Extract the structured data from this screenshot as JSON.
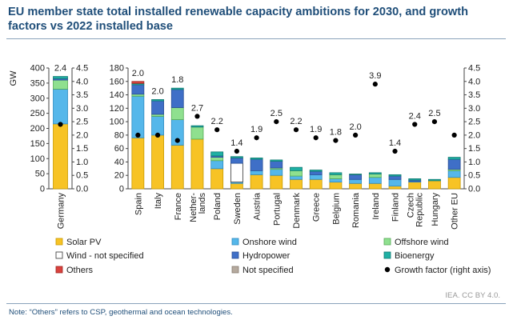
{
  "chart_data": {
    "type": "bar",
    "title": "EU member state total installed renewable capacity ambitions for 2030, and growth factors vs 2022 installed base",
    "left_panel": {
      "categories": [
        "Germany"
      ],
      "ylabel": "GW",
      "ylim": [
        0,
        400
      ],
      "y_ticks": [
        "0",
        "50",
        "100",
        "150",
        "200",
        "250",
        "300",
        "350",
        "400"
      ],
      "y2lim": [
        0,
        4.5
      ],
      "y2_ticks": [
        "0.0",
        "0.5",
        "1.0",
        "1.5",
        "2.0",
        "2.5",
        "3.0",
        "3.5",
        "4.0",
        "4.5"
      ],
      "series": [
        {
          "key": "solar",
          "values": [
            215
          ]
        },
        {
          "key": "onshore",
          "values": [
            115
          ]
        },
        {
          "key": "offshore",
          "values": [
            30
          ]
        },
        {
          "key": "wind_ns",
          "values": [
            0
          ]
        },
        {
          "key": "hydro",
          "values": [
            5
          ]
        },
        {
          "key": "bio",
          "values": [
            7
          ]
        },
        {
          "key": "others",
          "values": [
            0
          ]
        },
        {
          "key": "not_specified",
          "values": [
            0
          ]
        }
      ],
      "growth_factor": [
        2.4
      ],
      "growth_labels": [
        "2.4"
      ]
    },
    "right_panel": {
      "categories": [
        "Spain",
        "Italy",
        "France",
        "Nether-\nlands",
        "Poland",
        "Sweden",
        "Austria",
        "Portugal",
        "Denmark",
        "Greece",
        "Belgium",
        "Romania",
        "Ireland",
        "Finland",
        "Czech\nRepublic",
        "Hungary",
        "Other EU"
      ],
      "ylim": [
        0,
        180
      ],
      "y_ticks": [
        "0",
        "20",
        "40",
        "60",
        "80",
        "100",
        "120",
        "140",
        "160",
        "180"
      ],
      "y2lim": [
        0,
        4.5
      ],
      "y2_ticks": [
        "0.0",
        "0.5",
        "1.0",
        "1.5",
        "2.0",
        "2.5",
        "3.0",
        "3.5",
        "4.0",
        "4.5"
      ],
      "series": [
        {
          "key": "solar",
          "values": [
            76,
            80,
            65,
            74,
            30,
            8,
            21,
            20,
            14,
            14,
            10,
            8,
            8,
            4,
            10,
            12,
            17
          ]
        },
        {
          "key": "onshore",
          "values": [
            62,
            28,
            38,
            0,
            12,
            2,
            6,
            9,
            5,
            7,
            5,
            6,
            9,
            10,
            1,
            0,
            10
          ]
        },
        {
          "key": "offshore",
          "values": [
            3,
            3,
            18,
            18,
            5,
            0,
            0,
            2,
            8,
            0,
            6,
            0,
            5,
            0,
            0,
            0,
            2
          ]
        },
        {
          "key": "wind_ns",
          "values": [
            0,
            0,
            0,
            0,
            0,
            28,
            0,
            0,
            0,
            0,
            0,
            0,
            0,
            0,
            0,
            0,
            0
          ]
        },
        {
          "key": "hydro",
          "values": [
            14,
            20,
            27,
            0,
            2,
            8,
            17,
            10,
            0,
            5,
            0,
            7,
            0,
            5,
            2,
            0,
            15
          ]
        },
        {
          "key": "bio",
          "values": [
            2,
            2,
            2,
            2,
            6,
            2,
            2,
            2,
            5,
            2,
            3,
            1,
            2,
            2,
            2,
            2,
            3
          ]
        },
        {
          "key": "others",
          "values": [
            3,
            0,
            0,
            0,
            0,
            0,
            0,
            0,
            0,
            0,
            0,
            0,
            0,
            0,
            0,
            0,
            0
          ]
        },
        {
          "key": "not_specified",
          "values": [
            0,
            0,
            0,
            0,
            0,
            0,
            0,
            0,
            0,
            0,
            0,
            0,
            0,
            0,
            0,
            0,
            0
          ]
        }
      ],
      "growth_factor": [
        2.0,
        2.0,
        1.8,
        2.7,
        2.2,
        1.4,
        1.9,
        2.5,
        2.2,
        1.9,
        1.8,
        2.0,
        3.9,
        1.4,
        2.4,
        2.5,
        2.0
      ],
      "growth_labels": [
        "2.0",
        "2.0",
        "1.8",
        "2.7",
        "2.2",
        "1.4",
        "1.9",
        "2.5",
        "2.2",
        "1.9",
        "1.8",
        "2.0",
        "3.9",
        "1.4",
        "2.4",
        "2.5",
        ""
      ]
    },
    "legend": [
      {
        "key": "solar",
        "label": "Solar PV",
        "color": "#f7c325",
        "border": "#c99a00"
      },
      {
        "key": "onshore",
        "label": "Onshore wind",
        "color": "#55b7ea",
        "border": "#2f8bc0"
      },
      {
        "key": "offshore",
        "label": "Offshore wind",
        "color": "#8fe08f",
        "border": "#55aa55"
      },
      {
        "key": "wind_ns",
        "label": "Wind - not specified",
        "color": "#ffffff",
        "border": "#333333"
      },
      {
        "key": "hydro",
        "label": "Hydropower",
        "color": "#3f6fc7",
        "border": "#2a4f96"
      },
      {
        "key": "bio",
        "label": "Bioenergy",
        "color": "#1fb0a4",
        "border": "#137a72"
      },
      {
        "key": "others",
        "label": "Others",
        "color": "#d9423e",
        "border": "#9e2622"
      },
      {
        "key": "not_specified",
        "label": "Not specified",
        "color": "#b5aa9e",
        "border": "#857a6f"
      },
      {
        "key": "growth",
        "label": "Growth factor (right axis)",
        "color": "#000000",
        "border": "#000000"
      }
    ],
    "legend_placement": "bottom",
    "grid": false
  },
  "footer": {
    "note": "Note: “Others” refers to CSP, geothermal and ocean technologies.",
    "credit": "IEA. CC BY 4.0."
  }
}
